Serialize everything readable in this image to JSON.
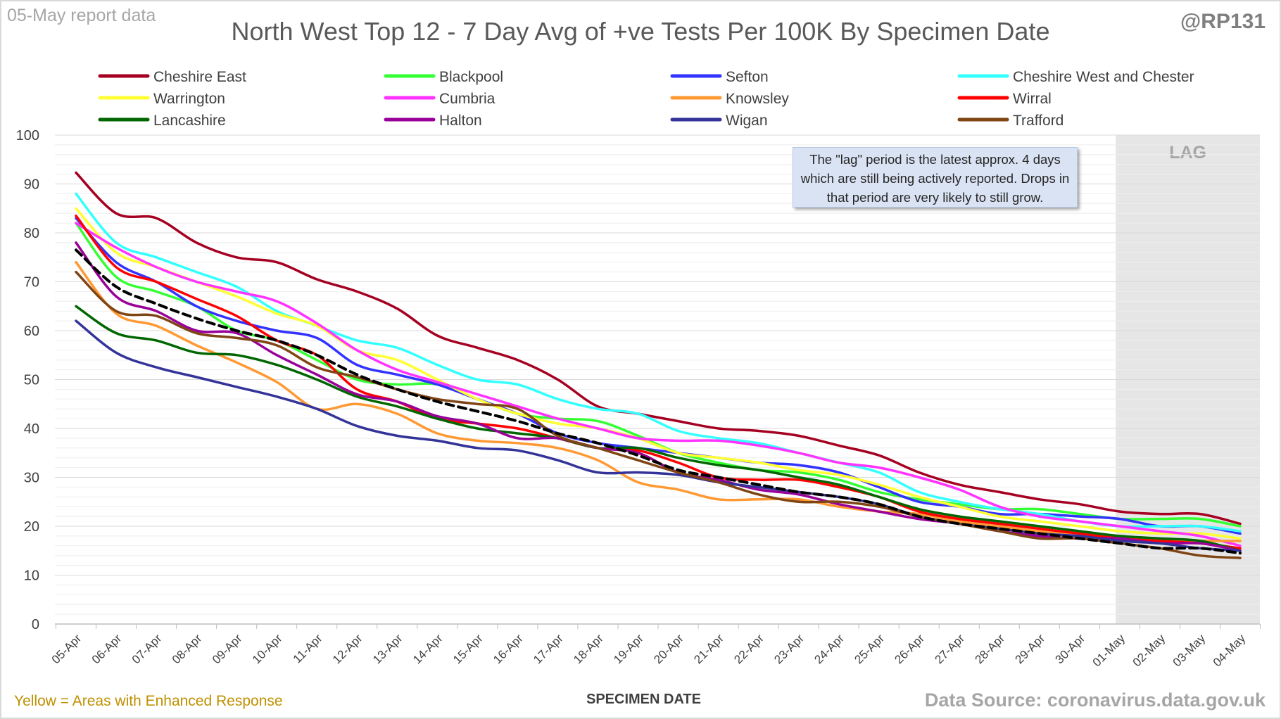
{
  "report_date": "05-May report data",
  "handle": "@RP131",
  "note_left": "Yellow = Areas with Enhanced Response",
  "source": "Data Source: coronavirus.data.gov.uk",
  "callout": "The \"lag\" period is the latest approx. 4 days which are still being actively reported. Drops in that period are very likely to still grow.",
  "chart_data": {
    "type": "line",
    "title": "North West Top 12 - 7 Day Avg of +ve Tests Per 100K By Specimen Date",
    "xlabel": "SPECIMEN DATE",
    "ylabel": "",
    "ylim": [
      0,
      100
    ],
    "yticks": [
      0,
      10,
      20,
      30,
      40,
      50,
      60,
      70,
      80,
      90,
      100
    ],
    "grid": true,
    "legend_position": "top",
    "lag_label": "LAG",
    "lag_start": "01-May",
    "lag_end": "04-May",
    "categories": [
      "05-Apr",
      "06-Apr",
      "07-Apr",
      "08-Apr",
      "09-Apr",
      "10-Apr",
      "11-Apr",
      "12-Apr",
      "13-Apr",
      "14-Apr",
      "15-Apr",
      "16-Apr",
      "17-Apr",
      "18-Apr",
      "19-Apr",
      "20-Apr",
      "21-Apr",
      "22-Apr",
      "23-Apr",
      "24-Apr",
      "25-Apr",
      "26-Apr",
      "27-Apr",
      "28-Apr",
      "29-Apr",
      "30-Apr",
      "01-May",
      "02-May",
      "03-May",
      "04-May"
    ],
    "series": [
      {
        "name": "Cheshire East",
        "color": "#a50021",
        "values": [
          92.3,
          84,
          83,
          78,
          75,
          74,
          70.5,
          68,
          64.5,
          59,
          56.5,
          54,
          50,
          44.5,
          43,
          41.5,
          40,
          39.5,
          38.5,
          36.5,
          34.5,
          31,
          28.5,
          27,
          25.5,
          24.5,
          23,
          22.5,
          22.5,
          20.5
        ]
      },
      {
        "name": "Blackpool",
        "color": "#33ff33",
        "values": [
          82,
          71,
          68,
          65,
          60,
          58,
          54,
          50,
          49,
          49,
          46,
          43,
          42,
          41.5,
          38.5,
          35,
          33,
          31.5,
          31,
          29.5,
          27,
          25.5,
          24.5,
          23.5,
          23.5,
          22.5,
          21.5,
          21.5,
          21.5,
          20
        ]
      },
      {
        "name": "Sefton",
        "color": "#3333ff",
        "values": [
          83,
          74,
          70,
          65,
          62,
          60,
          58.5,
          53,
          51,
          49,
          46,
          43,
          39,
          37,
          36,
          35,
          34,
          33,
          32.5,
          31,
          28,
          25,
          24,
          22.5,
          22.5,
          22,
          21.5,
          20,
          20,
          18.5
        ]
      },
      {
        "name": "Cheshire West and Chester",
        "color": "#33ffff",
        "values": [
          88,
          78,
          75,
          72,
          69,
          64,
          61,
          58,
          56.5,
          53,
          50,
          49,
          46,
          44,
          43,
          39.5,
          38,
          37,
          35,
          33,
          31,
          27,
          25,
          23.5,
          22.5,
          21,
          20,
          20,
          20,
          19
        ]
      },
      {
        "name": "Warrington",
        "color": "#ffff33",
        "values": [
          85,
          76,
          73,
          70,
          67,
          63.5,
          61,
          56,
          54,
          50,
          46,
          43,
          41,
          40,
          38,
          35,
          34,
          33,
          31.5,
          30.5,
          28.5,
          26,
          24,
          22,
          21,
          20,
          19,
          18.5,
          18.5,
          17.5
        ]
      },
      {
        "name": "Cumbria",
        "color": "#ff33ff",
        "values": [
          82,
          77,
          73,
          70,
          68,
          66,
          61.5,
          56,
          52,
          49.5,
          47,
          44.5,
          42,
          40,
          38,
          37.5,
          37.5,
          36.5,
          35,
          33,
          32,
          30,
          27.5,
          24,
          22,
          21,
          20,
          19,
          18,
          16
        ]
      },
      {
        "name": "Knowsley",
        "color": "#ff9933",
        "values": [
          74,
          63.5,
          61,
          57,
          53.5,
          49.5,
          44,
          45,
          43,
          39,
          37.5,
          37,
          36,
          33.5,
          29,
          27.5,
          25.5,
          25.5,
          25.5,
          24,
          23,
          22.5,
          21,
          20,
          19,
          18.5,
          17.5,
          17,
          17,
          17
        ]
      },
      {
        "name": "Wirral",
        "color": "#ff0000",
        "values": [
          83.5,
          73,
          70,
          66.5,
          63,
          58,
          55,
          48,
          45.5,
          42,
          41,
          40,
          38,
          36,
          35.5,
          33,
          30,
          29.5,
          29.5,
          28,
          26,
          23,
          21.5,
          20.5,
          19.5,
          18.5,
          17.5,
          17,
          16.5,
          15.5
        ]
      },
      {
        "name": "Lancashire",
        "color": "#006600",
        "values": [
          65,
          59.5,
          58,
          55.5,
          55,
          53,
          50,
          46.5,
          44.5,
          42,
          40,
          39,
          38,
          36,
          36,
          34,
          32.5,
          31.5,
          30,
          28.5,
          26,
          23.5,
          22,
          21,
          20,
          19,
          18,
          17.5,
          17,
          15
        ]
      },
      {
        "name": "Halton",
        "color": "#990099",
        "values": [
          78,
          67,
          64,
          60,
          59.5,
          55,
          51,
          47,
          45.5,
          42.5,
          41,
          38,
          38,
          36,
          35,
          31,
          29.5,
          27.5,
          26.5,
          24.5,
          23,
          21.5,
          20.5,
          19,
          18,
          17.5,
          17.5,
          16.5,
          16.5,
          15
        ]
      },
      {
        "name": "Wigan",
        "color": "#333399",
        "values": [
          62,
          55.5,
          52.5,
          50.5,
          48.5,
          46.5,
          44,
          40.5,
          38.5,
          37.5,
          36,
          35.5,
          33.5,
          31,
          31,
          30.5,
          29,
          28,
          27,
          26,
          24.5,
          22,
          20.5,
          19.5,
          18.5,
          18,
          17,
          16.5,
          15.5,
          15
        ]
      },
      {
        "name": "Trafford",
        "color": "#7f4515",
        "values": [
          72,
          64,
          63,
          59.5,
          58.5,
          57,
          52.5,
          50.5,
          48,
          46,
          45,
          44,
          38.5,
          36,
          33.5,
          31,
          29,
          26.5,
          25,
          25,
          24,
          22,
          20.5,
          19,
          17.5,
          17.5,
          16.5,
          15.5,
          14,
          13.5
        ]
      },
      {
        "name": "",
        "color": "#000000",
        "dashed": true,
        "values": [
          76.5,
          69,
          65.5,
          62.5,
          60,
          58,
          55,
          51,
          48,
          45.5,
          43.5,
          41.5,
          39,
          37,
          34.5,
          31.5,
          30,
          28.5,
          27,
          26,
          24.5,
          22,
          20.5,
          19.5,
          18.5,
          17.5,
          16.5,
          15.5,
          15.5,
          14.5
        ]
      }
    ]
  }
}
